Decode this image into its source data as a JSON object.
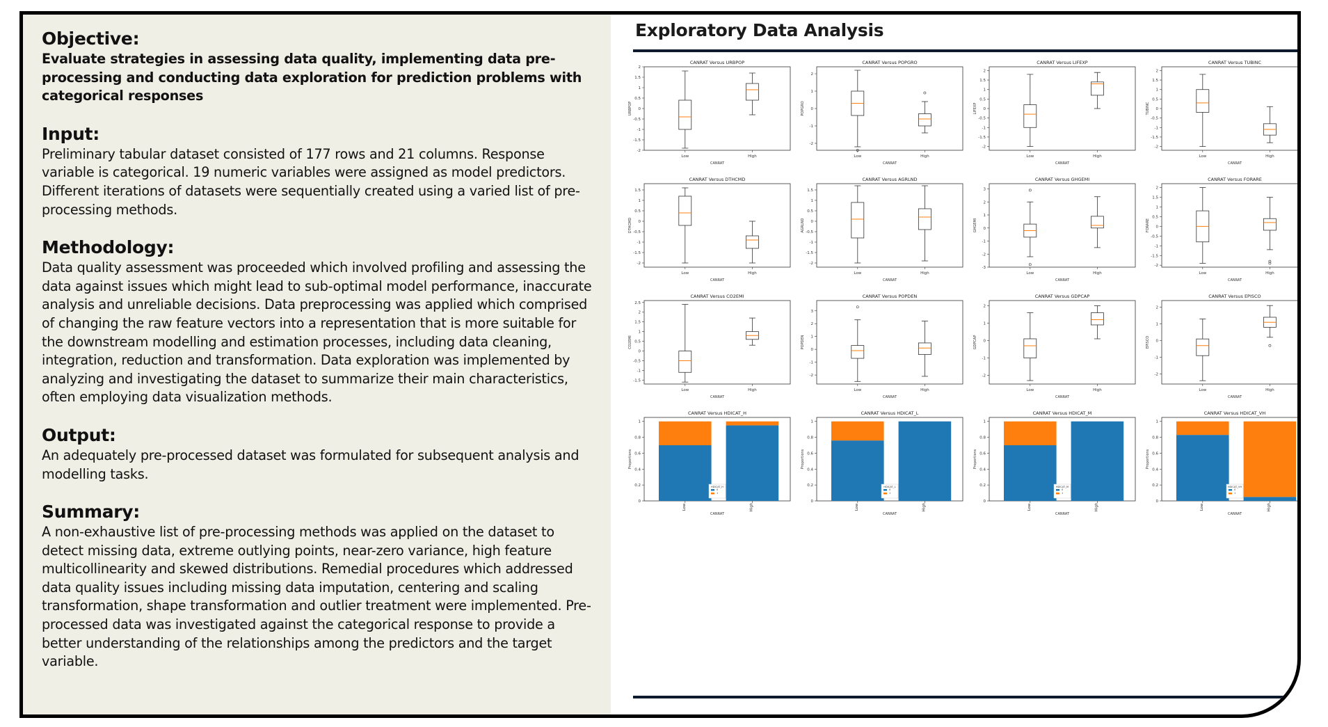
{
  "sections": [
    {
      "heading": "Objective:",
      "body": "Evaluate strategies in assessing data quality, implementing data pre-processing and conducting data exploration for prediction problems with categorical responses",
      "bold": true
    },
    {
      "heading": "Input:",
      "body": "Preliminary tabular dataset consisted of 177 rows and 21 columns. Response variable is categorical. 19 numeric variables were assigned as model predictors. Different iterations of datasets were sequentially created using a varied list of pre-processing methods."
    },
    {
      "heading": "Methodology:",
      "body": "Data quality assessment was proceeded which involved profiling and assessing the data against issues which might lead to sub-optimal model performance, inaccurate analysis and unreliable decisions. Data preprocessing was applied which comprised of changing the raw feature vectors into a representation that is more suitable for the downstream modelling and estimation processes, including data cleaning, integration, reduction and transformation. Data exploration was implemented by analyzing and investigating the dataset to summarize their main characteristics, often employing data visualization methods."
    },
    {
      "heading": "Output:",
      "body": "An adequately pre-processed dataset was formulated for subsequent analysis and modelling tasks."
    },
    {
      "heading": "Summary:",
      "body": "A non-exhaustive list of pre-processing methods was applied on the dataset to detect missing data, extreme outlying points, near-zero variance, high feature multicollinearity and skewed distributions. Remedial procedures which addressed data quality issues including missing data imputation, centering and scaling transformation, shape transformation and outlier treatment were implemented. Pre-processed data was investigated against the categorical response to provide a better understanding of the relationships among the predictors and the target variable."
    }
  ],
  "eda_title": "Exploratory Data Analysis",
  "chart_data": [
    {
      "type": "box",
      "title": "CANRAT Versus URBPOP",
      "xlabel": "CANRAT",
      "ylabel": "URBPOP",
      "categories": [
        "Low",
        "High"
      ],
      "ylim": [
        -2.0,
        2.0
      ],
      "yticks": [
        -2.0,
        -1.5,
        -1.0,
        -0.5,
        0.0,
        0.5,
        1.0,
        1.5,
        2.0
      ],
      "boxes": [
        {
          "whislo": -1.9,
          "q1": -1.0,
          "med": -0.4,
          "q3": 0.4,
          "whishi": 1.8,
          "fliers": []
        },
        {
          "whislo": -0.3,
          "q1": 0.4,
          "med": 0.9,
          "q3": 1.2,
          "whishi": 1.7,
          "fliers": []
        }
      ]
    },
    {
      "type": "box",
      "title": "CANRAT Versus POPGRO",
      "xlabel": "CANRAT",
      "ylabel": "POPGRO",
      "categories": [
        "Low",
        "High"
      ],
      "ylim": [
        -2.4,
        2.4
      ],
      "yticks": [
        -2,
        -1,
        0,
        1,
        2
      ],
      "boxes": [
        {
          "whislo": -2.2,
          "q1": -0.4,
          "med": 0.3,
          "q3": 1.0,
          "whishi": 2.2,
          "fliers": [
            -2.4
          ]
        },
        {
          "whislo": -1.4,
          "q1": -1.0,
          "med": -0.6,
          "q3": -0.3,
          "whishi": 0.4,
          "fliers": [
            0.9
          ]
        }
      ]
    },
    {
      "type": "box",
      "title": "CANRAT Versus LIFEXP",
      "xlabel": "CANRAT",
      "ylabel": "LIFEXP",
      "categories": [
        "Low",
        "High"
      ],
      "ylim": [
        -2.2,
        2.2
      ],
      "yticks": [
        -2.0,
        -1.5,
        -1.0,
        -0.5,
        0.0,
        0.5,
        1.0,
        1.5,
        2.0
      ],
      "boxes": [
        {
          "whislo": -2.0,
          "q1": -1.0,
          "med": -0.3,
          "q3": 0.2,
          "whishi": 1.8,
          "fliers": []
        },
        {
          "whislo": 0.0,
          "q1": 0.7,
          "med": 1.3,
          "q3": 1.4,
          "whishi": 1.9,
          "fliers": []
        }
      ]
    },
    {
      "type": "box",
      "title": "CANRAT Versus TUBINC",
      "xlabel": "CANRAT",
      "ylabel": "TUBINC",
      "categories": [
        "Low",
        "High"
      ],
      "ylim": [
        -2.2,
        2.2
      ],
      "yticks": [
        -2.0,
        -1.5,
        -1.0,
        -0.5,
        0.0,
        0.5,
        1.0,
        1.5,
        2.0
      ],
      "boxes": [
        {
          "whislo": -2.0,
          "q1": -0.2,
          "med": 0.3,
          "q3": 1.0,
          "whishi": 1.8,
          "fliers": []
        },
        {
          "whislo": -1.8,
          "q1": -1.4,
          "med": -1.1,
          "q3": -0.8,
          "whishi": 0.1,
          "fliers": []
        }
      ]
    },
    {
      "type": "box",
      "title": "CANRAT Versus DTHCMD",
      "xlabel": "CANRAT",
      "ylabel": "DTHCMD",
      "categories": [
        "Low",
        "High"
      ],
      "ylim": [
        -2.2,
        1.8
      ],
      "yticks": [
        -2.0,
        -1.5,
        -1.0,
        -0.5,
        0.0,
        0.5,
        1.0,
        1.5
      ],
      "boxes": [
        {
          "whislo": -2.0,
          "q1": -0.2,
          "med": 0.4,
          "q3": 1.2,
          "whishi": 1.6,
          "fliers": []
        },
        {
          "whislo": -2.0,
          "q1": -1.3,
          "med": -0.9,
          "q3": -0.7,
          "whishi": 0.0,
          "fliers": []
        }
      ]
    },
    {
      "type": "box",
      "title": "CANRAT Versus AGRLND",
      "xlabel": "CANRAT",
      "ylabel": "AGRLND",
      "categories": [
        "Low",
        "High"
      ],
      "ylim": [
        -2.2,
        1.8
      ],
      "yticks": [
        -2.0,
        -1.5,
        -1.0,
        -0.5,
        0.0,
        0.5,
        1.0,
        1.5
      ],
      "boxes": [
        {
          "whislo": -2.0,
          "q1": -0.8,
          "med": 0.1,
          "q3": 0.9,
          "whishi": 1.7,
          "fliers": []
        },
        {
          "whislo": -1.9,
          "q1": -0.4,
          "med": 0.2,
          "q3": 0.6,
          "whishi": 1.7,
          "fliers": []
        }
      ]
    },
    {
      "type": "box",
      "title": "CANRAT Versus GHGEMI",
      "xlabel": "CANRAT",
      "ylabel": "GHGEMI",
      "categories": [
        "Low",
        "High"
      ],
      "ylim": [
        -3.0,
        3.4
      ],
      "yticks": [
        -3,
        -2,
        -1,
        0,
        1,
        2,
        3
      ],
      "boxes": [
        {
          "whislo": -2.2,
          "q1": -0.7,
          "med": -0.2,
          "q3": 0.3,
          "whishi": 2.0,
          "fliers": [
            2.9,
            -2.8
          ]
        },
        {
          "whislo": -1.5,
          "q1": 0.0,
          "med": 0.2,
          "q3": 0.9,
          "whishi": 2.4,
          "fliers": []
        }
      ]
    },
    {
      "type": "box",
      "title": "CANRAT Versus FORARE",
      "xlabel": "CANRAT",
      "ylabel": "FORARE",
      "categories": [
        "Low",
        "High"
      ],
      "ylim": [
        -2.1,
        2.2
      ],
      "yticks": [
        -2.0,
        -1.5,
        -1.0,
        -0.5,
        0.0,
        0.5,
        1.0,
        1.5,
        2.0
      ],
      "boxes": [
        {
          "whislo": -1.9,
          "q1": -0.8,
          "med": 0.0,
          "q3": 0.8,
          "whishi": 2.0,
          "fliers": []
        },
        {
          "whislo": -1.2,
          "q1": -0.2,
          "med": 0.2,
          "q3": 0.4,
          "whishi": 1.5,
          "fliers": [
            -1.8,
            -1.9
          ]
        }
      ]
    },
    {
      "type": "box",
      "title": "CANRAT Versus CO2EMI",
      "xlabel": "CANRAT",
      "ylabel": "CO2EMI",
      "categories": [
        "Low",
        "High"
      ],
      "ylim": [
        -1.7,
        2.6
      ],
      "yticks": [
        -1.5,
        -1.0,
        -0.5,
        0.0,
        0.5,
        1.0,
        1.5,
        2.0,
        2.5
      ],
      "boxes": [
        {
          "whislo": -1.6,
          "q1": -1.1,
          "med": -0.5,
          "q3": 0.0,
          "whishi": 2.4,
          "fliers": []
        },
        {
          "whislo": 0.3,
          "q1": 0.6,
          "med": 0.8,
          "q3": 1.0,
          "whishi": 1.7,
          "fliers": []
        }
      ]
    },
    {
      "type": "box",
      "title": "CANRAT Versus POPDEN",
      "xlabel": "CANRAT",
      "ylabel": "POPDEN",
      "categories": [
        "Low",
        "High"
      ],
      "ylim": [
        -2.7,
        3.8
      ],
      "yticks": [
        -2,
        -1,
        0,
        1,
        2,
        3
      ],
      "boxes": [
        {
          "whislo": -2.5,
          "q1": -0.7,
          "med": -0.1,
          "q3": 0.3,
          "whishi": 2.3,
          "fliers": [
            3.3
          ]
        },
        {
          "whislo": -2.1,
          "q1": -0.4,
          "med": 0.1,
          "q3": 0.5,
          "whishi": 2.2,
          "fliers": []
        }
      ]
    },
    {
      "type": "box",
      "title": "CANRAT Versus GDPCAP",
      "xlabel": "CANRAT",
      "ylabel": "GDPCAP",
      "categories": [
        "Low",
        "High"
      ],
      "ylim": [
        -2.5,
        2.3
      ],
      "yticks": [
        -2,
        -1,
        0,
        1,
        2
      ],
      "boxes": [
        {
          "whislo": -2.3,
          "q1": -1.0,
          "med": -0.3,
          "q3": 0.1,
          "whishi": 1.6,
          "fliers": []
        },
        {
          "whislo": 0.1,
          "q1": 0.9,
          "med": 1.2,
          "q3": 1.6,
          "whishi": 2.0,
          "fliers": []
        }
      ]
    },
    {
      "type": "box",
      "title": "CANRAT Versus EPISCO",
      "xlabel": "CANRAT",
      "ylabel": "EPISCO",
      "categories": [
        "Low",
        "High"
      ],
      "ylim": [
        -2.6,
        2.4
      ],
      "yticks": [
        -2,
        -1,
        0,
        1,
        2
      ],
      "boxes": [
        {
          "whislo": -2.4,
          "q1": -0.9,
          "med": -0.3,
          "q3": 0.1,
          "whishi": 1.3,
          "fliers": []
        },
        {
          "whislo": 0.2,
          "q1": 0.8,
          "med": 1.1,
          "q3": 1.4,
          "whishi": 2.1,
          "fliers": [
            -0.3
          ]
        }
      ]
    },
    {
      "type": "stacked_bar",
      "title": "CANRAT Versus HDICAT_H",
      "xlabel": "CANRAT",
      "ylabel": "Proportions",
      "categories": [
        "Low",
        "High"
      ],
      "ylim": [
        0,
        1.05
      ],
      "yticks": [
        0.0,
        0.2,
        0.4,
        0.6,
        0.8,
        1.0
      ],
      "legend_title": "HDICAT_H",
      "series": [
        {
          "name": "0",
          "values": [
            0.7,
            0.95
          ],
          "color": "#1f77b4"
        },
        {
          "name": "1",
          "values": [
            0.3,
            0.05
          ],
          "color": "#ff7f0e"
        }
      ]
    },
    {
      "type": "stacked_bar",
      "title": "CANRAT Versus HDICAT_L",
      "xlabel": "CANRAT",
      "ylabel": "Proportions",
      "categories": [
        "Low",
        "High"
      ],
      "ylim": [
        0,
        1.05
      ],
      "yticks": [
        0.0,
        0.2,
        0.4,
        0.6,
        0.8,
        1.0
      ],
      "legend_title": "HDICAT_L",
      "series": [
        {
          "name": "0",
          "values": [
            0.76,
            1.0
          ],
          "color": "#1f77b4"
        },
        {
          "name": "1",
          "values": [
            0.24,
            0.0
          ],
          "color": "#ff7f0e"
        }
      ]
    },
    {
      "type": "stacked_bar",
      "title": "CANRAT Versus HDICAT_M",
      "xlabel": "CANRAT",
      "ylabel": "Proportions",
      "categories": [
        "Low",
        "High"
      ],
      "ylim": [
        0,
        1.05
      ],
      "yticks": [
        0.0,
        0.2,
        0.4,
        0.6,
        0.8,
        1.0
      ],
      "legend_title": "HDICAT_M",
      "series": [
        {
          "name": "0",
          "values": [
            0.7,
            1.0
          ],
          "color": "#1f77b4"
        },
        {
          "name": "1",
          "values": [
            0.3,
            0.0
          ],
          "color": "#ff7f0e"
        }
      ]
    },
    {
      "type": "stacked_bar",
      "title": "CANRAT Versus HDICAT_VH",
      "xlabel": "CANRAT",
      "ylabel": "Proportions",
      "categories": [
        "Low",
        "High"
      ],
      "ylim": [
        0,
        1.05
      ],
      "yticks": [
        0.0,
        0.2,
        0.4,
        0.6,
        0.8,
        1.0
      ],
      "legend_title": "HDICAT_VH",
      "series": [
        {
          "name": "0",
          "values": [
            0.83,
            0.05
          ],
          "color": "#1f77b4"
        },
        {
          "name": "1",
          "values": [
            0.17,
            0.95
          ],
          "color": "#ff7f0e"
        }
      ]
    }
  ]
}
